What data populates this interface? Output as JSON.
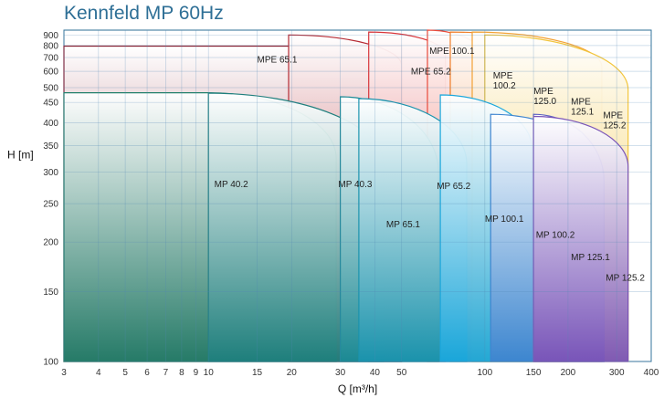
{
  "chart_data": {
    "type": "area",
    "title": "Kennfeld MP 60Hz",
    "xlabel": "Q [m³/h]",
    "ylabel": "H [m]",
    "x_scale": "log",
    "xlim": [
      3,
      400
    ],
    "x_ticks": [
      3,
      4,
      5,
      6,
      7,
      8,
      9,
      10,
      15,
      20,
      30,
      40,
      50,
      100,
      150,
      200,
      300,
      400
    ],
    "y_ticks_lower": [
      100,
      150,
      200,
      250,
      300,
      350,
      400,
      450
    ],
    "y_ticks_upper": [
      500,
      600,
      700,
      800,
      900
    ],
    "grid": true,
    "series": [
      {
        "name": "MPE 65.1",
        "color": "#8b1a2b",
        "outline": [
          [
            3,
            100
          ],
          [
            3,
            795
          ],
          [
            50,
            795
          ],
          [
            50,
            100
          ]
        ],
        "label_at": [
          15,
          660
        ]
      },
      {
        "name": "MPE 65.2",
        "color": "#b52a33",
        "outline": [
          [
            19.5,
            100
          ],
          [
            19.5,
            900
          ],
          [
            50,
            640
          ],
          [
            50,
            100
          ]
        ],
        "label_at": [
          54,
          580
        ]
      },
      {
        "name": "MPE 100.1",
        "color": "#d8353a",
        "outline": [
          [
            38,
            100
          ],
          [
            38,
            930
          ],
          [
            72,
            720
          ],
          [
            72,
            100
          ]
        ],
        "label_at": [
          63,
          730
        ]
      },
      {
        "name": "MPE 100.2",
        "color": "#e94a3b",
        "outline": [
          [
            62,
            100
          ],
          [
            62,
            950
          ],
          [
            105,
            630
          ],
          [
            105,
            100
          ]
        ],
        "label_at": [
          107,
          555
        ]
      },
      {
        "name": "MPE 125.0",
        "color": "#f07f2a",
        "outline": [
          [
            75,
            100
          ],
          [
            75,
            930
          ],
          [
            200,
            650
          ],
          [
            200,
            100
          ]
        ],
        "label_at": [
          150,
          473
        ]
      },
      {
        "name": "MPE 125.1",
        "color": "#f3a235",
        "outline": [
          [
            90,
            100
          ],
          [
            90,
            930
          ],
          [
            265,
            630
          ],
          [
            265,
            100
          ]
        ],
        "label_at": [
          205,
          445
        ]
      },
      {
        "name": "MPE 125.2",
        "color": "#f2c53c",
        "outline": [
          [
            100,
            100
          ],
          [
            100,
            900
          ],
          [
            330,
            490
          ],
          [
            330,
            100
          ]
        ],
        "label_at": [
          268,
          410
        ]
      },
      {
        "name": "MP 40.2",
        "color": "#207f6a",
        "outline": [
          [
            3,
            100
          ],
          [
            3,
            476
          ],
          [
            10,
            476
          ],
          [
            29,
            325
          ],
          [
            29,
            100
          ]
        ],
        "label_at": [
          10.5,
          275
        ]
      },
      {
        "name": "MP 40.3",
        "color": "#1e7f7d",
        "outline": [
          [
            10,
            100
          ],
          [
            10,
            475
          ],
          [
            43,
            315
          ],
          [
            43,
            100
          ]
        ],
        "label_at": [
          29.5,
          275
        ]
      },
      {
        "name": "MP 65.1",
        "color": "#1b8a95",
        "outline": [
          [
            30,
            100
          ],
          [
            30,
            465
          ],
          [
            68,
            300
          ],
          [
            68,
            100
          ]
        ],
        "label_at": [
          44,
          218
        ]
      },
      {
        "name": "MP 65.2",
        "color": "#1a93ad",
        "outline": [
          [
            35,
            100
          ],
          [
            35,
            460
          ],
          [
            86,
            315
          ],
          [
            86,
            100
          ]
        ],
        "label_at": [
          67,
          272
        ]
      },
      {
        "name": "MP 100.1",
        "color": "#19a7dc",
        "outline": [
          [
            69,
            100
          ],
          [
            69,
            470
          ],
          [
            148,
            345
          ],
          [
            148,
            100
          ]
        ],
        "label_at": [
          100,
          225
        ]
      },
      {
        "name": "MP 100.2",
        "color": "#3e84cf",
        "outline": [
          [
            105,
            100
          ],
          [
            105,
            420
          ],
          [
            270,
            290
          ],
          [
            270,
            100
          ]
        ],
        "label_at": [
          153,
          205
        ]
      },
      {
        "name": "MP 125.1",
        "color": "#5b5fc0",
        "outline": [
          [
            150,
            100
          ],
          [
            150,
            420
          ],
          [
            270,
            285
          ],
          [
            270,
            100
          ]
        ],
        "label_at": [
          205,
          180
        ]
      },
      {
        "name": "MP 125.2",
        "color": "#7a54b8",
        "outline": [
          [
            150,
            100
          ],
          [
            150,
            415
          ],
          [
            330,
            310
          ],
          [
            330,
            100
          ]
        ],
        "label_at": [
          274,
          160
        ]
      }
    ]
  }
}
